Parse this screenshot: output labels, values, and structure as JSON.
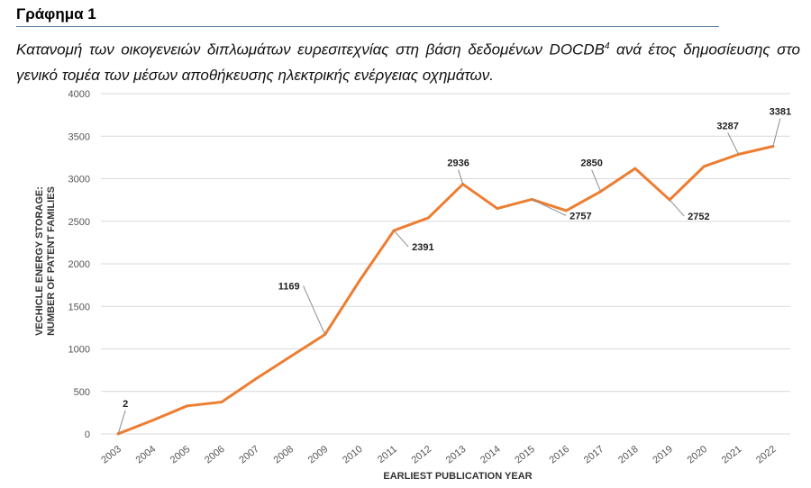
{
  "heading": "Γράφημα 1",
  "caption": {
    "text": "Κατανομή των οικογενειών διπλωμάτων ευρεσιτεχνίας στη βάση δεδομένων DOCDB",
    "sup": "4",
    "text_after": " ανά έτος δημοσίευσης στο γενικό τομέα των μέσων αποθήκευσης ηλεκτρικής ενέργειας οχημάτων."
  },
  "colors": {
    "line": "#ED7D31",
    "grid": "#d9d9d9",
    "rule": "#5b7fa6"
  },
  "chart_data": {
    "type": "line",
    "xlabel": "EARLIEST PUBLICATION YEAR",
    "ylabel_line1": "VECHICLE ENERGY STORAGE:",
    "ylabel_line2": "NUMBER OF PATENT FAMILIES",
    "ylim": [
      0,
      4000
    ],
    "yticks": [
      "0",
      "500",
      "1000",
      "1500",
      "2000",
      "2500",
      "3000",
      "3500",
      "4000"
    ],
    "grid": true,
    "categories": [
      "2003",
      "2004",
      "2005",
      "2006",
      "2007",
      "2008",
      "2009",
      "2010",
      "2011",
      "2012",
      "2013",
      "2014",
      "2015",
      "2016",
      "2017",
      "2018",
      "2019",
      "2020",
      "2021",
      "2022"
    ],
    "series": [
      {
        "values": [
          2,
          160,
          330,
          375,
          650,
          910,
          1169,
          1800,
          2391,
          2540,
          2936,
          2650,
          2757,
          2625,
          2850,
          3120,
          2752,
          3145,
          3287,
          3381
        ]
      }
    ],
    "data_labels": [
      {
        "index": 0,
        "text": "2"
      },
      {
        "index": 6,
        "text": "1169"
      },
      {
        "index": 8,
        "text": "2391"
      },
      {
        "index": 10,
        "text": "2936"
      },
      {
        "index": 12,
        "text": "2757"
      },
      {
        "index": 14,
        "text": "2850"
      },
      {
        "index": 16,
        "text": "2752"
      },
      {
        "index": 18,
        "text": "3287"
      },
      {
        "index": 19,
        "text": "3381"
      }
    ]
  }
}
